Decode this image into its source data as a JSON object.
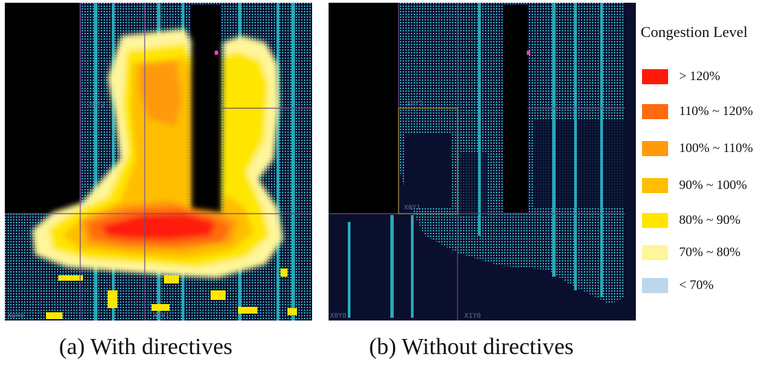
{
  "panels": [
    {
      "caption": "(a) With directives",
      "region_labels": [
        "X0Y2",
        "X0Y0",
        "X1Y1"
      ]
    },
    {
      "caption": "(b) Without directives",
      "region_labels": [
        "X0Y2",
        "X0Y1",
        "X0Y0",
        "X1Y0"
      ]
    }
  ],
  "legend": {
    "title": "Congestion Level",
    "items": [
      {
        "label": "> 120%",
        "color": "#ff1a0a"
      },
      {
        "label": "110% ~ 120%",
        "color": "#ff6a0f"
      },
      {
        "label": "100% ~ 110%",
        "color": "#ff9a0a"
      },
      {
        "label": "90% ~ 100%",
        "color": "#ffbe00"
      },
      {
        "label": "80% ~ 90%",
        "color": "#ffe600"
      },
      {
        "label": "70% ~ 80%",
        "color": "#fff59a"
      },
      {
        "label": "< 70%",
        "color": "#bcd6ec"
      }
    ]
  },
  "colors": {
    "background": "#0a0f2e",
    "logic": "#2aa8b8",
    "blocked": "#000000",
    "grid": "#6a4a8a"
  }
}
